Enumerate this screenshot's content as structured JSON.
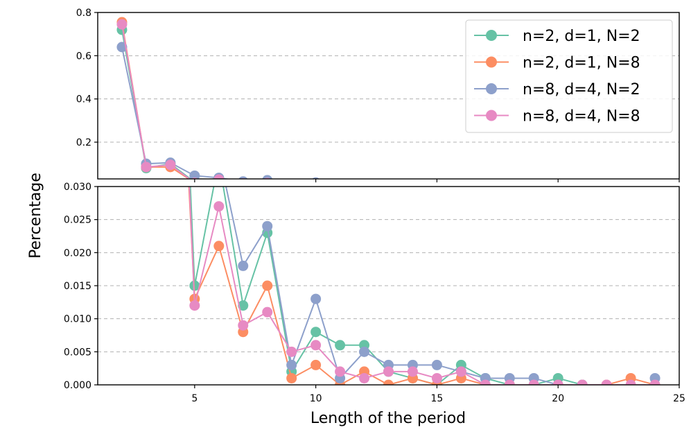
{
  "chart_data": {
    "type": "line",
    "xlabel": "Length of the period",
    "ylabel": "Percentage",
    "legend_position": "top-right",
    "grid": "horizontal dashed",
    "colors": [
      "#66c2a5",
      "#fc8d62",
      "#8da0cb",
      "#e78ac3"
    ],
    "x": [
      2,
      3,
      4,
      5,
      6,
      7,
      8,
      9,
      10,
      11,
      12,
      13,
      14,
      15,
      16,
      17,
      18,
      19,
      20,
      21,
      22,
      23,
      24
    ],
    "series": [
      {
        "name": "n=2, d=1, N=2",
        "values": [
          0.72,
          0.08,
          0.1,
          0.015,
          0.034,
          0.012,
          0.023,
          0.002,
          0.008,
          0.006,
          0.006,
          0.002,
          0.001,
          0.0,
          0.003,
          0.001,
          0.0,
          0.0,
          0.001,
          0.0,
          null,
          null,
          null
        ]
      },
      {
        "name": "n=2, d=1, N=8",
        "values": [
          0.755,
          0.085,
          0.085,
          0.013,
          0.021,
          0.008,
          0.015,
          0.001,
          0.003,
          0.0,
          0.002,
          0.0,
          0.001,
          0.0,
          0.001,
          0.0,
          0.0,
          0.0,
          0.0,
          0.0,
          0.0,
          0.001,
          0.0
        ]
      },
      {
        "name": "n=8, d=4, N=2",
        "values": [
          0.64,
          0.1,
          0.105,
          0.045,
          0.035,
          0.018,
          0.024,
          0.003,
          0.013,
          0.001,
          0.005,
          0.003,
          0.003,
          0.003,
          0.002,
          0.001,
          0.001,
          0.001,
          0.0,
          0.0,
          null,
          null,
          0.001
        ]
      },
      {
        "name": "n=8, d=4, N=8",
        "values": [
          0.745,
          0.085,
          0.095,
          0.012,
          0.027,
          0.009,
          0.011,
          0.005,
          0.006,
          0.002,
          0.001,
          0.002,
          0.002,
          0.001,
          0.002,
          0.0,
          0.0,
          0.0,
          0.0,
          0.0,
          0.0,
          0.0,
          0.0
        ]
      }
    ],
    "top_panel": {
      "ylim": [
        0.03,
        0.8
      ],
      "yticks": [
        0.2,
        0.4,
        0.6,
        0.8
      ],
      "ytick_labels": [
        "0.2",
        "0.4",
        "0.6",
        "0.8"
      ]
    },
    "bottom_panel": {
      "ylim": [
        0.0,
        0.03
      ],
      "yticks": [
        0.0,
        0.005,
        0.01,
        0.015,
        0.02,
        0.025,
        0.03
      ],
      "ytick_labels": [
        "0.000",
        "0.005",
        "0.010",
        "0.015",
        "0.020",
        "0.025",
        "0.030"
      ]
    },
    "xlim": [
      1,
      25
    ],
    "xticks": [
      5,
      10,
      15,
      20,
      25
    ],
    "xtick_labels": [
      "5",
      "10",
      "15",
      "20",
      "25"
    ]
  }
}
